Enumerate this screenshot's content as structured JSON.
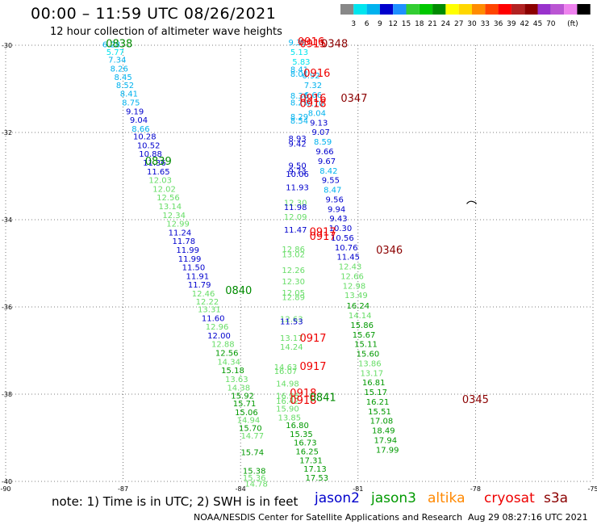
{
  "title": "00:00 – 11:59 UTC 08/26/2021",
  "subtitle": "12 hour collection of altimeter wave heights",
  "note": "note:  1) Time is in UTC;  2) SWH is in feet",
  "credit": "NOAA/NESDIS Center for Satellite Applications and Research",
  "credit_date": "Aug 29 08:27:16 UTC 2021",
  "satellites": [
    {
      "name": "jason2",
      "color": "#0000cc"
    },
    {
      "name": "jason3",
      "color": "#009900"
    },
    {
      "name": "altika",
      "color": "#ff8800"
    },
    {
      "name": "cryosat",
      "color": "#ee0000"
    },
    {
      "name": "s3a",
      "color": "#8b0000"
    }
  ],
  "colorbar": {
    "colors": [
      "#888888",
      "#00e5ee",
      "#00b2ee",
      "#0000cd",
      "#1e90ff",
      "#32cd32",
      "#00c800",
      "#008b00",
      "#ffff00",
      "#ffd700",
      "#ff8c00",
      "#ff4500",
      "#ff0000",
      "#b22222",
      "#8b0000",
      "#9932cc",
      "#ba55d3",
      "#ee82ee",
      "#000000"
    ],
    "labels": [
      "3",
      "6",
      "9",
      "12",
      "15",
      "18",
      "21",
      "24",
      "27",
      "30",
      "33",
      "36",
      "39",
      "42",
      "45",
      "70"
    ],
    "unit": "(ft)"
  },
  "map": {
    "lon_ticks": [
      "-90",
      "-87",
      "-84",
      "-81",
      "-78",
      "-75"
    ],
    "lat_ticks": [
      "-30",
      "-32",
      "-34",
      "-36",
      "-38",
      "-40"
    ]
  },
  "chart_data": {
    "type": "scatter",
    "title": "00:00 – 11:59 UTC 08/26/2021",
    "xlim": [
      -90,
      -75
    ],
    "ylim": [
      -40,
      -30
    ],
    "points": [
      {
        "lon": -87.3,
        "lat": -30.05,
        "v": "6.28",
        "c": "#00b2ee"
      },
      {
        "lon": -87.2,
        "lat": -30.22,
        "v": "5.77",
        "c": "#00e5ee"
      },
      {
        "lon": -87.15,
        "lat": -30.4,
        "v": "7.34",
        "c": "#00b2ee"
      },
      {
        "lon": -87.1,
        "lat": -30.6,
        "v": "8.26",
        "c": "#00b2ee"
      },
      {
        "lon": -87.0,
        "lat": -30.8,
        "v": "8.45",
        "c": "#00b2ee"
      },
      {
        "lon": -86.95,
        "lat": -30.98,
        "v": "8.52",
        "c": "#00b2ee"
      },
      {
        "lon": -86.85,
        "lat": -31.18,
        "v": "8.41",
        "c": "#00b2ee"
      },
      {
        "lon": -86.8,
        "lat": -31.38,
        "v": "8.75",
        "c": "#00b2ee"
      },
      {
        "lon": -86.7,
        "lat": -31.58,
        "v": "9.19",
        "c": "#0000cd"
      },
      {
        "lon": -86.6,
        "lat": -31.78,
        "v": "9.04",
        "c": "#0000cd"
      },
      {
        "lon": -86.55,
        "lat": -31.98,
        "v": "8.66",
        "c": "#00b2ee"
      },
      {
        "lon": -86.45,
        "lat": -32.16,
        "v": "10.28",
        "c": "#0000cd"
      },
      {
        "lon": -86.35,
        "lat": -32.36,
        "v": "10.52",
        "c": "#0000cd"
      },
      {
        "lon": -86.3,
        "lat": -32.56,
        "v": "10.88",
        "c": "#0000cd"
      },
      {
        "lon": -86.2,
        "lat": -32.76,
        "v": "11.36",
        "c": "#0000cd"
      },
      {
        "lon": -86.1,
        "lat": -32.96,
        "v": "11.65",
        "c": "#0000cd"
      },
      {
        "lon": -86.05,
        "lat": -33.16,
        "v": "12.03",
        "c": "#66dd66"
      },
      {
        "lon": -85.95,
        "lat": -33.36,
        "v": "12.02",
        "c": "#66dd66"
      },
      {
        "lon": -85.85,
        "lat": -33.56,
        "v": "12.56",
        "c": "#66dd66"
      },
      {
        "lon": -85.8,
        "lat": -33.76,
        "v": "13.14",
        "c": "#66dd66"
      },
      {
        "lon": -85.7,
        "lat": -33.96,
        "v": "12.34",
        "c": "#66dd66"
      },
      {
        "lon": -85.6,
        "lat": -34.16,
        "v": "12.99",
        "c": "#66dd66"
      },
      {
        "lon": -85.55,
        "lat": -34.36,
        "v": "11.24",
        "c": "#0000cd"
      },
      {
        "lon": -85.45,
        "lat": -34.56,
        "v": "11.78",
        "c": "#0000cd"
      },
      {
        "lon": -85.35,
        "lat": -34.76,
        "v": "11.99",
        "c": "#0000cd"
      },
      {
        "lon": -85.3,
        "lat": -34.96,
        "v": "11.99",
        "c": "#0000cd"
      },
      {
        "lon": -85.2,
        "lat": -35.16,
        "v": "11.50",
        "c": "#0000cd"
      },
      {
        "lon": -85.1,
        "lat": -35.36,
        "v": "11.91",
        "c": "#0000cd"
      },
      {
        "lon": -85.05,
        "lat": -35.56,
        "v": "11.79",
        "c": "#0000cd"
      },
      {
        "lon": -84.95,
        "lat": -35.76,
        "v": "12.46",
        "c": "#66dd66"
      },
      {
        "lon": -84.85,
        "lat": -35.94,
        "v": "12.22",
        "c": "#66dd66"
      },
      {
        "lon": -84.8,
        "lat": -36.12,
        "v": "13.31",
        "c": "#66dd66"
      },
      {
        "lon": -84.7,
        "lat": -36.32,
        "v": "11.60",
        "c": "#0000cd"
      },
      {
        "lon": -84.6,
        "lat": -36.52,
        "v": "12.96",
        "c": "#66dd66"
      },
      {
        "lon": -84.55,
        "lat": -36.72,
        "v": "12.00",
        "c": "#0000cd"
      },
      {
        "lon": -84.45,
        "lat": -36.92,
        "v": "12.88",
        "c": "#66dd66"
      },
      {
        "lon": -84.35,
        "lat": -37.12,
        "v": "12.56",
        "c": "#009900"
      },
      {
        "lon": -84.3,
        "lat": -37.32,
        "v": "14.34",
        "c": "#66dd66"
      },
      {
        "lon": -84.2,
        "lat": -37.52,
        "v": "15.18",
        "c": "#009900"
      },
      {
        "lon": -84.1,
        "lat": -37.72,
        "v": "13.63",
        "c": "#66dd66"
      },
      {
        "lon": -84.05,
        "lat": -37.92,
        "v": "14.38",
        "c": "#66dd66"
      },
      {
        "lon": -83.95,
        "lat": -38.1,
        "v": "15.92",
        "c": "#009900"
      },
      {
        "lon": -83.9,
        "lat": -38.28,
        "v": "15.71",
        "c": "#009900"
      },
      {
        "lon": -83.85,
        "lat": -38.48,
        "v": "15.06",
        "c": "#009900"
      },
      {
        "lon": -83.8,
        "lat": -38.66,
        "v": "14.94",
        "c": "#66dd66"
      },
      {
        "lon": -83.75,
        "lat": -38.84,
        "v": "15.70",
        "c": "#009900"
      },
      {
        "lon": -83.7,
        "lat": -39.02,
        "v": "14.77",
        "c": "#66dd66"
      },
      {
        "lon": -83.7,
        "lat": -39.4,
        "v": "15.74",
        "c": "#009900"
      },
      {
        "lon": -83.65,
        "lat": -39.82,
        "v": "15.38",
        "c": "#009900"
      },
      {
        "lon": -83.65,
        "lat": -39.98,
        "v": "15.36",
        "c": "#66dd66"
      },
      {
        "lon": -83.6,
        "lat": -40.12,
        "v": "14.78",
        "c": "#66dd66"
      },
      {
        "lon": -82.55,
        "lat": -30.0,
        "v": "9.39",
        "c": "#00b2ee"
      },
      {
        "lon": -82.5,
        "lat": -30.22,
        "v": "5.13",
        "c": "#00e5ee"
      },
      {
        "lon": -82.45,
        "lat": -30.44,
        "v": "5.83",
        "c": "#00e5ee"
      },
      {
        "lon": -82.5,
        "lat": -30.62,
        "v": "8.41",
        "c": "#00b2ee"
      },
      {
        "lon": -82.5,
        "lat": -30.72,
        "v": "8.01",
        "c": "#00b2ee"
      },
      {
        "lon": -82.2,
        "lat": -30.76,
        "v": "6.92",
        "c": "#00b2ee"
      },
      {
        "lon": -82.15,
        "lat": -30.98,
        "v": "7.32",
        "c": "#00b2ee"
      },
      {
        "lon": -82.15,
        "lat": -31.2,
        "v": "6.66",
        "c": "#00b2ee"
      },
      {
        "lon": -82.5,
        "lat": -31.22,
        "v": "8.36",
        "c": "#00b2ee"
      },
      {
        "lon": -82.5,
        "lat": -31.38,
        "v": "8.29",
        "c": "#00b2ee"
      },
      {
        "lon": -82.1,
        "lat": -31.4,
        "v": "7.70",
        "c": "#00b2ee"
      },
      {
        "lon": -82.05,
        "lat": -31.62,
        "v": "8.04",
        "c": "#00b2ee"
      },
      {
        "lon": -82.5,
        "lat": -31.7,
        "v": "8.29",
        "c": "#00b2ee"
      },
      {
        "lon": -82.5,
        "lat": -31.8,
        "v": "8.54",
        "c": "#00b2ee"
      },
      {
        "lon": -82.0,
        "lat": -31.84,
        "v": "9.13",
        "c": "#0000cd"
      },
      {
        "lon": -81.95,
        "lat": -32.06,
        "v": "9.07",
        "c": "#0000cd"
      },
      {
        "lon": -82.55,
        "lat": -32.2,
        "v": "8.93",
        "c": "#0000cd"
      },
      {
        "lon": -82.55,
        "lat": -32.32,
        "v": "9.42",
        "c": "#0000cd"
      },
      {
        "lon": -81.9,
        "lat": -32.28,
        "v": "8.59",
        "c": "#00b2ee"
      },
      {
        "lon": -81.85,
        "lat": -32.5,
        "v": "9.66",
        "c": "#0000cd"
      },
      {
        "lon": -82.55,
        "lat": -32.82,
        "v": "9.50",
        "c": "#0000cd"
      },
      {
        "lon": -82.55,
        "lat": -32.95,
        "v": "9.73",
        "c": "#0000cd"
      },
      {
        "lon": -82.55,
        "lat": -33.02,
        "v": "10.06",
        "c": "#0000cd"
      },
      {
        "lon": -81.8,
        "lat": -32.72,
        "v": "9.67",
        "c": "#0000cd"
      },
      {
        "lon": -81.75,
        "lat": -32.94,
        "v": "8.42",
        "c": "#00b2ee"
      },
      {
        "lon": -82.55,
        "lat": -33.32,
        "v": "11.93",
        "c": "#0000cd"
      },
      {
        "lon": -81.7,
        "lat": -33.16,
        "v": "9.55",
        "c": "#0000cd"
      },
      {
        "lon": -81.65,
        "lat": -33.38,
        "v": "8.47",
        "c": "#00b2ee"
      },
      {
        "lon": -82.6,
        "lat": -33.68,
        "v": "12.30",
        "c": "#66dd66"
      },
      {
        "lon": -82.6,
        "lat": -33.78,
        "v": "11.98",
        "c": "#0000cd"
      },
      {
        "lon": -81.6,
        "lat": -33.6,
        "v": "9.56",
        "c": "#0000cd"
      },
      {
        "lon": -82.6,
        "lat": -34.0,
        "v": "12.09",
        "c": "#66dd66"
      },
      {
        "lon": -81.55,
        "lat": -33.82,
        "v": "9.94",
        "c": "#0000cd"
      },
      {
        "lon": -81.5,
        "lat": -34.04,
        "v": "9.43",
        "c": "#0000cd"
      },
      {
        "lon": -82.6,
        "lat": -34.3,
        "v": "11.47",
        "c": "#0000cd"
      },
      {
        "lon": -81.45,
        "lat": -34.26,
        "v": "10.30",
        "c": "#0000cd"
      },
      {
        "lon": -81.4,
        "lat": -34.48,
        "v": "10.56",
        "c": "#0000cd"
      },
      {
        "lon": -82.65,
        "lat": -34.74,
        "v": "12.86",
        "c": "#66dd66"
      },
      {
        "lon": -82.65,
        "lat": -34.86,
        "v": "13.02",
        "c": "#66dd66"
      },
      {
        "lon": -81.3,
        "lat": -34.7,
        "v": "10.76",
        "c": "#0000cd"
      },
      {
        "lon": -81.25,
        "lat": -34.92,
        "v": "11.45",
        "c": "#0000cd"
      },
      {
        "lon": -82.65,
        "lat": -35.22,
        "v": "12.26",
        "c": "#66dd66"
      },
      {
        "lon": -82.65,
        "lat": -35.48,
        "v": "12.30",
        "c": "#66dd66"
      },
      {
        "lon": -81.2,
        "lat": -35.14,
        "v": "12.43",
        "c": "#66dd66"
      },
      {
        "lon": -82.65,
        "lat": -35.74,
        "v": "12.05",
        "c": "#66dd66"
      },
      {
        "lon": -82.65,
        "lat": -35.84,
        "v": "12.89",
        "c": "#66dd66"
      },
      {
        "lon": -81.15,
        "lat": -35.36,
        "v": "12.66",
        "c": "#66dd66"
      },
      {
        "lon": -81.1,
        "lat": -35.58,
        "v": "12.98",
        "c": "#66dd66"
      },
      {
        "lon": -81.05,
        "lat": -35.8,
        "v": "13.49",
        "c": "#66dd66"
      },
      {
        "lon": -82.7,
        "lat": -36.34,
        "v": "12.63",
        "c": "#66dd66"
      },
      {
        "lon": -82.7,
        "lat": -36.4,
        "v": "11.53",
        "c": "#0000cd"
      },
      {
        "lon": -81.0,
        "lat": -36.04,
        "v": "16.24",
        "c": "#009900"
      },
      {
        "lon": -80.95,
        "lat": -36.26,
        "v": "14.14",
        "c": "#66dd66"
      },
      {
        "lon": -82.7,
        "lat": -36.78,
        "v": "13.17",
        "c": "#66dd66"
      },
      {
        "lon": -82.7,
        "lat": -36.98,
        "v": "14.24",
        "c": "#66dd66"
      },
      {
        "lon": -80.9,
        "lat": -36.48,
        "v": "15.86",
        "c": "#009900"
      },
      {
        "lon": -80.85,
        "lat": -36.7,
        "v": "15.67",
        "c": "#009900"
      },
      {
        "lon": -82.85,
        "lat": -37.44,
        "v": "14.63",
        "c": "#66dd66"
      },
      {
        "lon": -82.85,
        "lat": -37.54,
        "v": "16.07",
        "c": "#66dd66"
      },
      {
        "lon": -80.8,
        "lat": -36.92,
        "v": "15.11",
        "c": "#009900"
      },
      {
        "lon": -82.8,
        "lat": -37.82,
        "v": "14.98",
        "c": "#66dd66"
      },
      {
        "lon": -80.75,
        "lat": -37.14,
        "v": "15.60",
        "c": "#009900"
      },
      {
        "lon": -80.7,
        "lat": -37.36,
        "v": "13.86",
        "c": "#66dd66"
      },
      {
        "lon": -82.8,
        "lat": -38.1,
        "v": "16.98",
        "c": "#66dd66"
      },
      {
        "lon": -82.8,
        "lat": -38.22,
        "v": "16.42",
        "c": "#66dd66"
      },
      {
        "lon": -82.8,
        "lat": -38.4,
        "v": "15.90",
        "c": "#66dd66"
      },
      {
        "lon": -80.65,
        "lat": -37.58,
        "v": "13.17",
        "c": "#66dd66"
      },
      {
        "lon": -82.75,
        "lat": -38.6,
        "v": "13.85",
        "c": "#66dd66"
      },
      {
        "lon": -80.6,
        "lat": -37.8,
        "v": "16.81",
        "c": "#009900"
      },
      {
        "lon": -80.55,
        "lat": -38.02,
        "v": "15.17",
        "c": "#009900"
      },
      {
        "lon": -82.55,
        "lat": -38.78,
        "v": "16.80",
        "c": "#009900"
      },
      {
        "lon": -82.45,
        "lat": -38.98,
        "v": "15.35",
        "c": "#009900"
      },
      {
        "lon": -80.5,
        "lat": -38.24,
        "v": "16.21",
        "c": "#009900"
      },
      {
        "lon": -82.35,
        "lat": -39.18,
        "v": "16.73",
        "c": "#009900"
      },
      {
        "lon": -80.45,
        "lat": -38.46,
        "v": "15.51",
        "c": "#009900"
      },
      {
        "lon": -82.3,
        "lat": -39.38,
        "v": "16.25",
        "c": "#009900"
      },
      {
        "lon": -80.4,
        "lat": -38.68,
        "v": "17.08",
        "c": "#009900"
      },
      {
        "lon": -82.2,
        "lat": -39.58,
        "v": "17.31",
        "c": "#009900"
      },
      {
        "lon": -80.35,
        "lat": -38.9,
        "v": "18.49",
        "c": "#009900"
      },
      {
        "lon": -82.1,
        "lat": -39.78,
        "v": "17.13",
        "c": "#009900"
      },
      {
        "lon": -80.3,
        "lat": -39.12,
        "v": "17.94",
        "c": "#009900"
      },
      {
        "lon": -82.05,
        "lat": -39.98,
        "v": "17.53",
        "c": "#009900"
      },
      {
        "lon": -80.25,
        "lat": -39.34,
        "v": "17.99",
        "c": "#009900"
      }
    ],
    "time_labels": [
      {
        "lon": -87.1,
        "lat": -30.05,
        "v": "0838",
        "c": "#008b00"
      },
      {
        "lon": -86.1,
        "lat": -32.74,
        "v": "0839",
        "c": "#008b00"
      },
      {
        "lon": -84.05,
        "lat": -35.7,
        "v": "0840",
        "c": "#008b00"
      },
      {
        "lon": -82.2,
        "lat": -30.0,
        "v": "0916",
        "c": "#ee0000"
      },
      {
        "lon": -82.15,
        "lat": -30.05,
        "v": "0915",
        "c": "#ee0000"
      },
      {
        "lon": -81.6,
        "lat": -30.05,
        "v": "0348",
        "c": "#8b0000"
      },
      {
        "lon": -82.05,
        "lat": -30.72,
        "v": "0916",
        "c": "#ee0000"
      },
      {
        "lon": -82.15,
        "lat": -31.3,
        "v": "0916",
        "c": "#ee0000"
      },
      {
        "lon": -82.15,
        "lat": -31.42,
        "v": "0918",
        "c": "#ee0000"
      },
      {
        "lon": -81.1,
        "lat": -31.3,
        "v": "0347",
        "c": "#8b0000"
      },
      {
        "lon": -81.9,
        "lat": -34.36,
        "v": "0917",
        "c": "#ee0000"
      },
      {
        "lon": -81.9,
        "lat": -34.46,
        "v": "0917",
        "c": "#ee0000"
      },
      {
        "lon": -80.2,
        "lat": -34.78,
        "v": "0346",
        "c": "#8b0000"
      },
      {
        "lon": -82.15,
        "lat": -36.8,
        "v": "0917",
        "c": "#ee0000"
      },
      {
        "lon": -82.15,
        "lat": -37.44,
        "v": "0917",
        "c": "#ee0000"
      },
      {
        "lon": -82.4,
        "lat": -38.06,
        "v": "0918",
        "c": "#ee0000"
      },
      {
        "lon": -82.4,
        "lat": -38.22,
        "v": "0918",
        "c": "#ee0000"
      },
      {
        "lon": -81.9,
        "lat": -38.16,
        "v": "0841",
        "c": "#008b00"
      },
      {
        "lon": -78.0,
        "lat": -38.2,
        "v": "0345",
        "c": "#8b0000"
      }
    ]
  }
}
